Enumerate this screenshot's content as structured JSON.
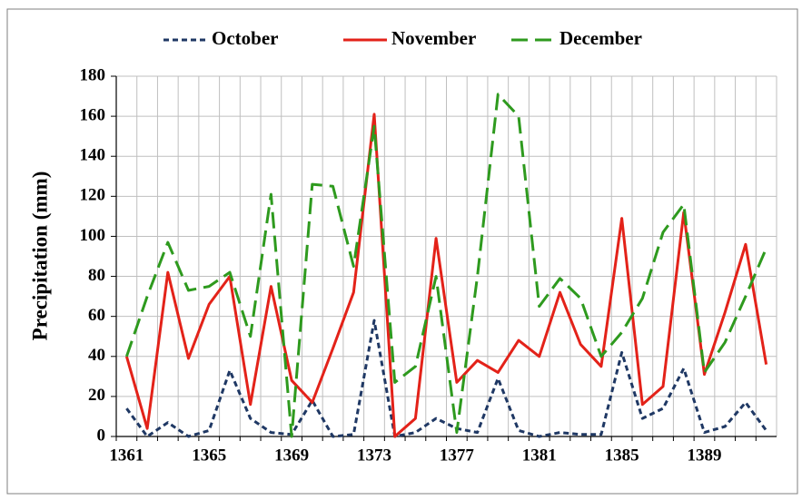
{
  "chart_data": {
    "type": "line",
    "y_label": "Precipitation (mm)",
    "categories": [
      "1361",
      null,
      null,
      null,
      "1365",
      null,
      null,
      null,
      "1369",
      null,
      null,
      null,
      "1373",
      null,
      null,
      null,
      "1377",
      null,
      null,
      null,
      "1381",
      null,
      null,
      null,
      "1385",
      null,
      null,
      null,
      "1389",
      null,
      null,
      null
    ],
    "series": [
      {
        "name": "October",
        "color": "#1f3864",
        "dash": "dotted",
        "values": [
          14,
          0,
          7,
          0,
          3,
          33,
          9,
          2,
          1,
          18,
          0,
          1,
          58,
          0,
          2,
          9,
          4,
          2,
          29,
          3,
          0,
          2,
          1,
          1,
          42,
          9,
          14,
          34,
          2,
          5,
          17,
          3
        ]
      },
      {
        "name": "November",
        "color": "#e32219",
        "dash": "solid",
        "values": [
          40,
          4,
          82,
          39,
          66,
          80,
          16,
          75,
          28,
          17,
          44,
          72,
          161,
          0,
          9,
          99,
          27,
          38,
          32,
          48,
          40,
          72,
          46,
          35,
          109,
          16,
          25,
          112,
          31,
          62,
          96,
          36
        ]
      },
      {
        "name": "December",
        "color": "#2e9a1e",
        "dash": "dashed",
        "values": [
          40,
          70,
          97,
          73,
          75,
          82,
          50,
          121,
          0,
          126,
          125,
          85,
          155,
          27,
          35,
          80,
          2,
          80,
          171,
          160,
          65,
          79,
          69,
          40,
          52,
          69,
          102,
          116,
          32,
          47,
          70,
          94
        ]
      }
    ],
    "ylim": [
      0,
      180
    ],
    "yticks": [
      0,
      20,
      40,
      60,
      80,
      100,
      120,
      140,
      160,
      180
    ],
    "grid": true,
    "legend": "top"
  }
}
